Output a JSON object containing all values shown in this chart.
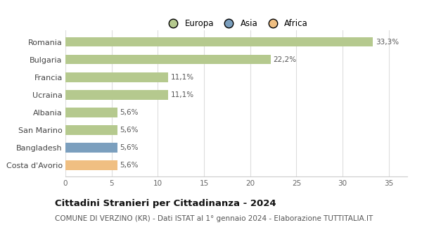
{
  "categories": [
    "Romania",
    "Bulgaria",
    "Francia",
    "Ucraina",
    "Albania",
    "San Marino",
    "Bangladesh",
    "Costa d'Avorio"
  ],
  "values": [
    33.3,
    22.2,
    11.1,
    11.1,
    5.6,
    5.6,
    5.6,
    5.6
  ],
  "labels": [
    "33,3%",
    "22,2%",
    "11,1%",
    "11,1%",
    "5,6%",
    "5,6%",
    "5,6%",
    "5,6%"
  ],
  "colors": [
    "#b5c98e",
    "#b5c98e",
    "#b5c98e",
    "#b5c98e",
    "#b5c98e",
    "#b5c98e",
    "#7b9fbe",
    "#f0bf82"
  ],
  "legend": [
    {
      "label": "Europa",
      "color": "#b5c98e"
    },
    {
      "label": "Asia",
      "color": "#7b9fbe"
    },
    {
      "label": "Africa",
      "color": "#f0bf82"
    }
  ],
  "xlim": [
    0,
    37
  ],
  "xticks": [
    0,
    5,
    10,
    15,
    20,
    25,
    30,
    35
  ],
  "title": "Cittadini Stranieri per Cittadinanza - 2024",
  "subtitle": "COMUNE DI VERZINO (KR) - Dati ISTAT al 1° gennaio 2024 - Elaborazione TUTTITALIA.IT",
  "title_fontsize": 9.5,
  "subtitle_fontsize": 7.5,
  "bar_height": 0.55,
  "background_color": "#ffffff",
  "grid_color": "#dddddd",
  "label_fontsize": 7.5,
  "tick_fontsize": 7.5,
  "ytick_fontsize": 8
}
